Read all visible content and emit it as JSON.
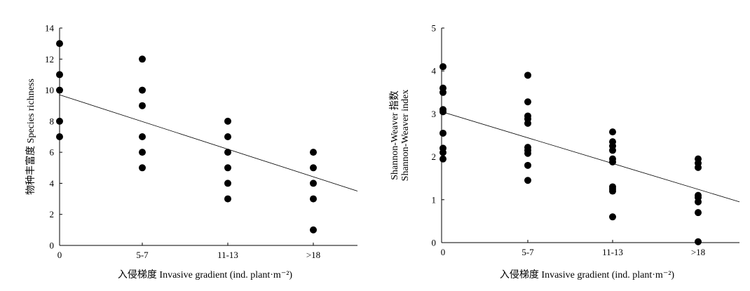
{
  "chart_data": [
    {
      "type": "scatter",
      "title": "",
      "xlabel": "入侵梯度 Invasive gradient (ind. plant·m⁻²)",
      "ylabel": "物种丰富度 Species richness",
      "ylabel_lines": [
        "物种丰富度 Species richness"
      ],
      "categories": [
        "0",
        "5-7",
        "11-13",
        ">18"
      ],
      "ylim": [
        0,
        14
      ],
      "yticks": [
        "0",
        "2",
        "4",
        "6",
        "8",
        "10",
        "12",
        "14"
      ],
      "grid": false,
      "points": [
        {
          "x": "0",
          "y": 13
        },
        {
          "x": "0",
          "y": 11
        },
        {
          "x": "0",
          "y": 10
        },
        {
          "x": "0",
          "y": 8
        },
        {
          "x": "0",
          "y": 7
        },
        {
          "x": "5-7",
          "y": 12
        },
        {
          "x": "5-7",
          "y": 10
        },
        {
          "x": "5-7",
          "y": 9
        },
        {
          "x": "5-7",
          "y": 7
        },
        {
          "x": "5-7",
          "y": 6
        },
        {
          "x": "5-7",
          "y": 5
        },
        {
          "x": "11-13",
          "y": 8
        },
        {
          "x": "11-13",
          "y": 7
        },
        {
          "x": "11-13",
          "y": 6
        },
        {
          "x": "11-13",
          "y": 5
        },
        {
          "x": "11-13",
          "y": 4
        },
        {
          "x": "11-13",
          "y": 3
        },
        {
          "x": ">18",
          "y": 6
        },
        {
          "x": ">18",
          "y": 5
        },
        {
          "x": ">18",
          "y": 4
        },
        {
          "x": ">18",
          "y": 3
        },
        {
          "x": ">18",
          "y": 1
        }
      ],
      "trendline": {
        "y_start": 9.7,
        "y_end": 3.5
      }
    },
    {
      "type": "scatter",
      "title": "",
      "xlabel": "入侵梯度 Invasive gradient (ind. plant·m⁻²)",
      "ylabel": "Shannon-Weaver 指数 Shannon-Weaver index",
      "ylabel_lines": [
        "Shannon-Weaver 指数",
        "Shannon-Weaver index"
      ],
      "categories": [
        "0",
        "5-7",
        "11-13",
        ">18"
      ],
      "ylim": [
        0,
        5
      ],
      "yticks": [
        "0",
        "1",
        "2",
        "3",
        "4",
        "5"
      ],
      "grid": false,
      "points": [
        {
          "x": "0",
          "y": 4.1
        },
        {
          "x": "0",
          "y": 3.6
        },
        {
          "x": "0",
          "y": 3.5
        },
        {
          "x": "0",
          "y": 3.1
        },
        {
          "x": "0",
          "y": 3.05
        },
        {
          "x": "0",
          "y": 2.55
        },
        {
          "x": "0",
          "y": 2.2
        },
        {
          "x": "0",
          "y": 2.1
        },
        {
          "x": "0",
          "y": 1.95
        },
        {
          "x": "5-7",
          "y": 3.9
        },
        {
          "x": "5-7",
          "y": 3.28
        },
        {
          "x": "5-7",
          "y": 2.95
        },
        {
          "x": "5-7",
          "y": 2.88
        },
        {
          "x": "5-7",
          "y": 2.78
        },
        {
          "x": "5-7",
          "y": 2.22
        },
        {
          "x": "5-7",
          "y": 2.15
        },
        {
          "x": "5-7",
          "y": 2.08
        },
        {
          "x": "5-7",
          "y": 1.8
        },
        {
          "x": "5-7",
          "y": 1.45
        },
        {
          "x": "11-13",
          "y": 2.58
        },
        {
          "x": "11-13",
          "y": 2.35
        },
        {
          "x": "11-13",
          "y": 2.25
        },
        {
          "x": "11-13",
          "y": 2.15
        },
        {
          "x": "11-13",
          "y": 1.95
        },
        {
          "x": "11-13",
          "y": 1.88
        },
        {
          "x": "11-13",
          "y": 1.3
        },
        {
          "x": "11-13",
          "y": 1.25
        },
        {
          "x": "11-13",
          "y": 1.2
        },
        {
          "x": "11-13",
          "y": 0.6
        },
        {
          "x": ">18",
          "y": 1.95
        },
        {
          "x": ">18",
          "y": 1.85
        },
        {
          "x": ">18",
          "y": 1.75
        },
        {
          "x": ">18",
          "y": 1.1
        },
        {
          "x": ">18",
          "y": 1.05
        },
        {
          "x": ">18",
          "y": 0.95
        },
        {
          "x": ">18",
          "y": 0.7
        },
        {
          "x": ">18",
          "y": 0.02
        }
      ],
      "trendline": {
        "y_start": 3.05,
        "y_end": 0.95
      }
    }
  ]
}
